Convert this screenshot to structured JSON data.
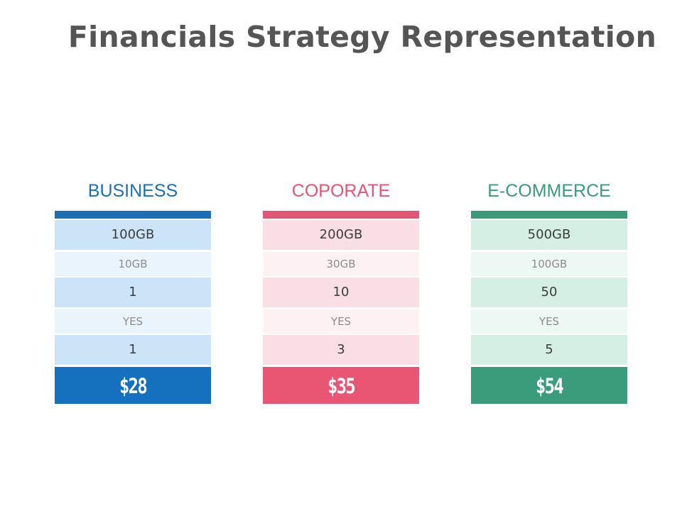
{
  "title": "Financials Strategy Representation",
  "plans": [
    {
      "name": "BUSINESS",
      "rows": [
        "100GB",
        "10GB",
        "1",
        "YES",
        "1"
      ],
      "price": "$28",
      "colors": {
        "accent": "#1a6fb5",
        "major": "#cce4f7",
        "minor": "#eaf4fc",
        "price": "#1570bd"
      }
    },
    {
      "name": "COPORATE",
      "rows": [
        "200GB",
        "30GB",
        "10",
        "YES",
        "3"
      ],
      "price": "$35",
      "colors": {
        "accent": "#e35673",
        "major": "#f9dfe5",
        "minor": "#fdf1f4",
        "price": "#e85674"
      }
    },
    {
      "name": "E-COMMERCE",
      "rows": [
        "500GB",
        "100GB",
        "50",
        "YES",
        "5"
      ],
      "price": "$54",
      "colors": {
        "accent": "#3b9a7a",
        "major": "#d6efe5",
        "minor": "#edf7f3",
        "price": "#3b9c7c"
      }
    }
  ]
}
